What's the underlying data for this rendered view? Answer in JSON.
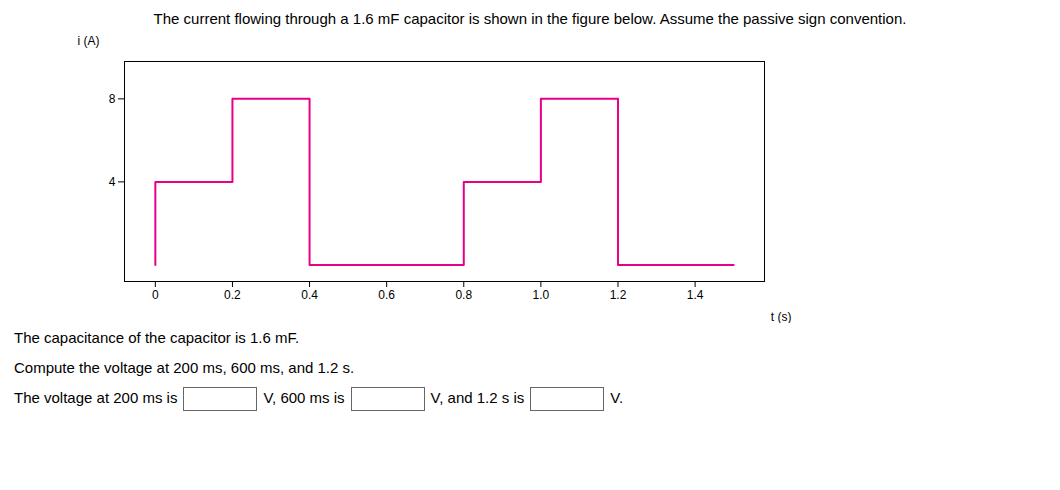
{
  "chart_data": {
    "type": "line",
    "title": "The current flowing through a 1.6 mF capacitor is shown in the figure below. Assume the passive sign convention.",
    "xlabel": "t (s)",
    "ylabel": "i (A)",
    "x": [
      0.0,
      0.0,
      0.2,
      0.2,
      0.4,
      0.4,
      0.8,
      0.8,
      1.0,
      1.0,
      1.2,
      1.2,
      1.5
    ],
    "values": [
      0.0,
      4.0,
      4.0,
      8.0,
      8.0,
      0.0,
      0.0,
      4.0,
      4.0,
      8.0,
      8.0,
      0.0,
      0.0
    ],
    "color": "#E8008A",
    "xlim": [
      -0.08,
      1.58
    ],
    "ylim": [
      -0.8,
      9.8
    ],
    "xticks": [
      0,
      0.2,
      0.4,
      0.6,
      0.8,
      {
        "value": 1.0,
        "label": "1.0"
      },
      1.2,
      1.4
    ],
    "yticks": [
      4,
      8
    ],
    "grid": false,
    "annotations": [
      "The capacitance of the capacitor is 1.6 mF.",
      "Compute the voltage at 200 ms, 600 ms, and 1.2 s.",
      [
        "The voltage at 200 ms is",
        "V, 600 ms is",
        "V, and 1.2 s is",
        "V."
      ]
    ]
  }
}
